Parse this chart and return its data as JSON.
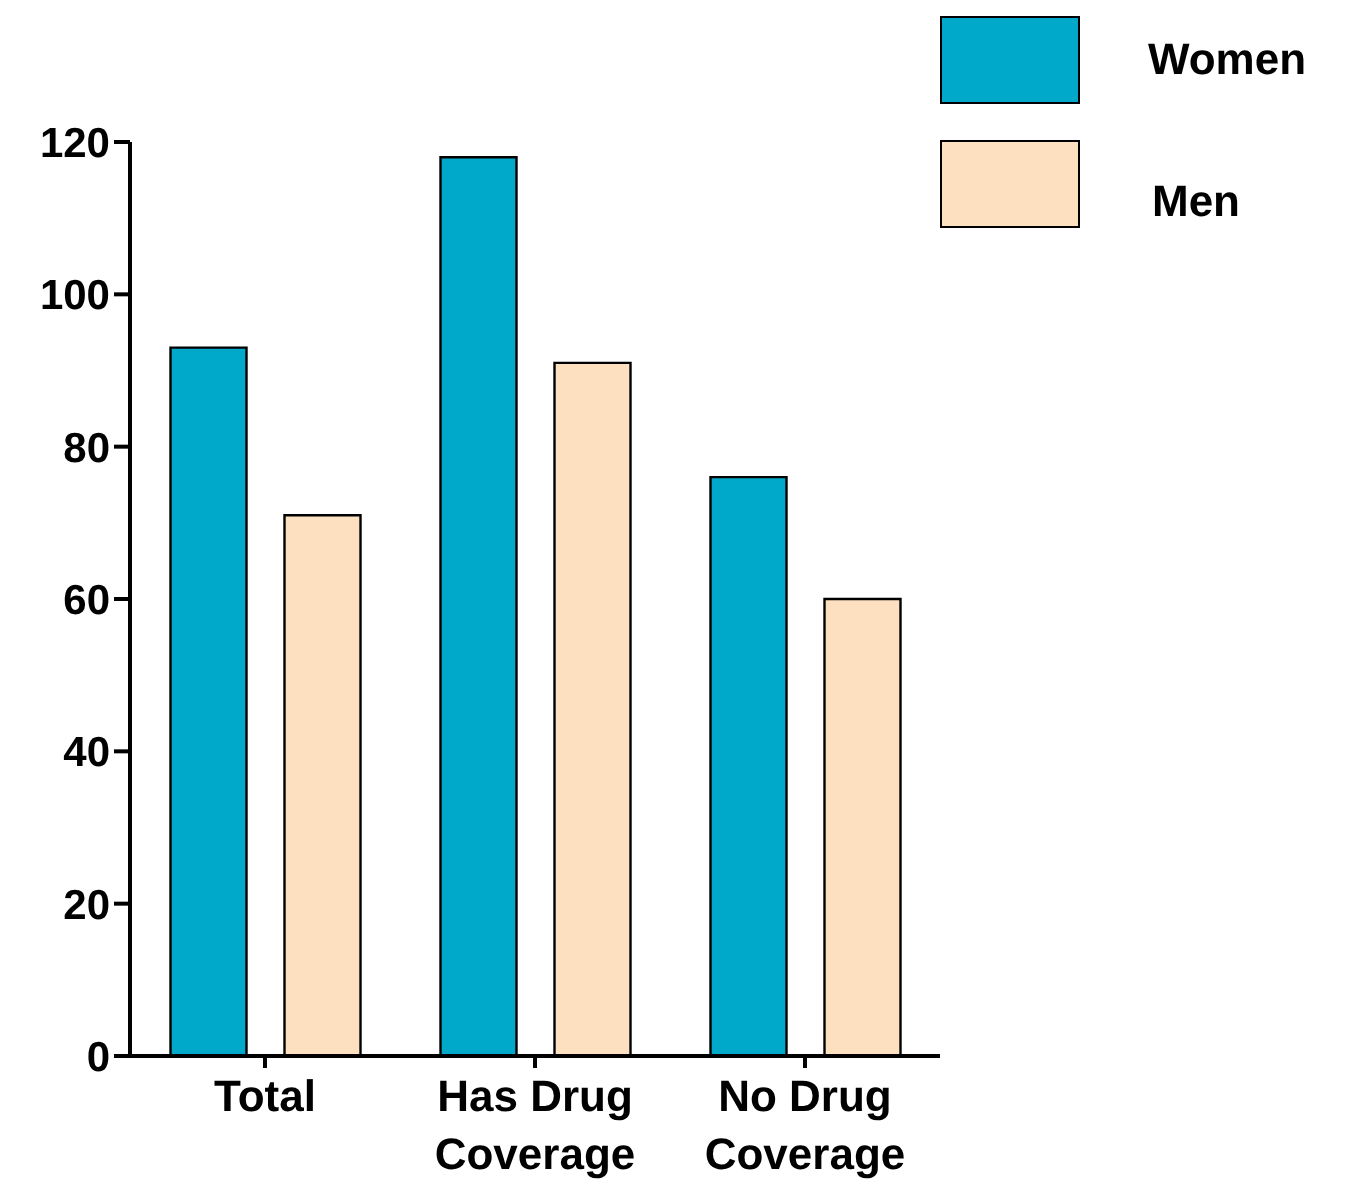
{
  "chart_data": {
    "type": "bar",
    "categories": [
      "Total",
      "Has Drug Coverage",
      "No Drug Coverage"
    ],
    "series": [
      {
        "name": "Women",
        "color": "#00a9c9",
        "values": [
          93,
          118,
          76
        ]
      },
      {
        "name": "Men",
        "color": "#fde0c0",
        "values": [
          71,
          91,
          60
        ]
      }
    ],
    "ylim": [
      0,
      120
    ],
    "yticks": [
      0,
      20,
      40,
      60,
      80,
      100,
      120
    ],
    "grid": false,
    "legend": "top right"
  }
}
